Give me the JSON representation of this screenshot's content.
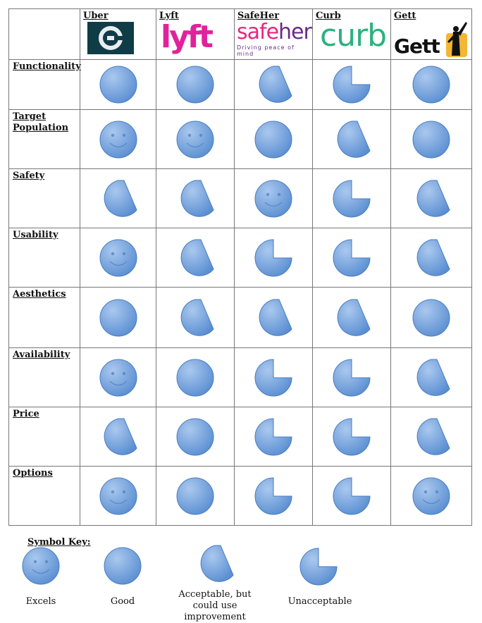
{
  "columns": [
    {
      "name": "Uber",
      "logo": "uber-logo"
    },
    {
      "name": "Lyft",
      "logo": "lyft-logo",
      "logo_text": "lyft"
    },
    {
      "name": "SafeHer",
      "logo": "safeher-logo",
      "logo_text_a": "safe",
      "logo_text_b": "her",
      "logo_tagline": "Driving peace of mind"
    },
    {
      "name": "Curb",
      "logo": "curb-logo",
      "logo_text": "curb"
    },
    {
      "name": "Gett",
      "logo": "gett-logo",
      "logo_text": "Gett"
    }
  ],
  "rows": [
    {
      "label": "Functionality",
      "ratings": [
        "good",
        "good",
        "acceptable",
        "unacceptable",
        "good"
      ]
    },
    {
      "label": "Target Population",
      "ratings": [
        "excels",
        "excels",
        "good",
        "acceptable",
        "good"
      ]
    },
    {
      "label": "Safety",
      "ratings": [
        "acceptable",
        "acceptable",
        "excels",
        "unacceptable",
        "acceptable"
      ]
    },
    {
      "label": "Usability",
      "ratings": [
        "excels",
        "acceptable",
        "unacceptable",
        "unacceptable",
        "acceptable"
      ]
    },
    {
      "label": "Aesthetics",
      "ratings": [
        "good",
        "acceptable",
        "acceptable",
        "acceptable",
        "good"
      ]
    },
    {
      "label": "Availability",
      "ratings": [
        "excels",
        "good",
        "unacceptable",
        "unacceptable",
        "acceptable"
      ]
    },
    {
      "label": "Price",
      "ratings": [
        "acceptable",
        "good",
        "unacceptable",
        "unacceptable",
        "acceptable"
      ]
    },
    {
      "label": "Options",
      "ratings": [
        "excels",
        "good",
        "unacceptable",
        "unacceptable",
        "excels"
      ]
    }
  ],
  "key": {
    "title": "Symbol Key:",
    "items": [
      {
        "symbol": "excels",
        "label": "Excels"
      },
      {
        "symbol": "good",
        "label": "Good"
      },
      {
        "symbol": "acceptable",
        "label": "Acceptable, but could use improvement"
      },
      {
        "symbol": "unacceptable",
        "label": "Unacceptable"
      }
    ]
  },
  "colors": {
    "symbol_fill_light": "#aac8ee",
    "symbol_fill_dark": "#5b8fd2",
    "symbol_stroke": "#4a7dc0",
    "lyft_pink": "#e0239b",
    "safeher_pink": "#e6287f",
    "safeher_purple": "#6a2a8a",
    "curb_green": "#2bb27d",
    "uber_bg": "#103c47"
  }
}
